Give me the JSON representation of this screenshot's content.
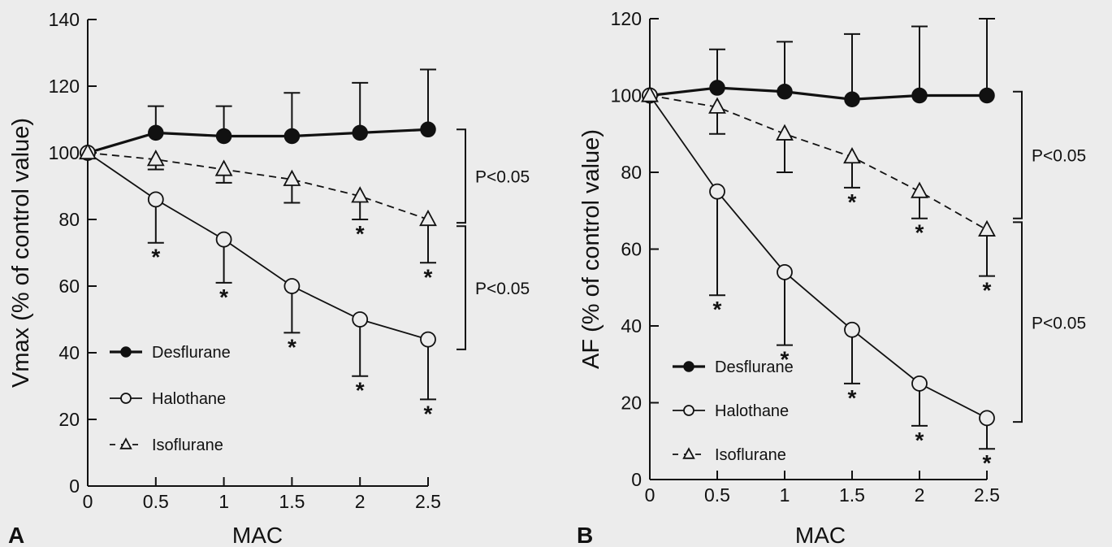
{
  "chart_data": [
    {
      "type": "line",
      "panel_label": "A",
      "xlabel": "MAC",
      "ylabel": "Vmax (% of control value)",
      "x": [
        0,
        0.5,
        1,
        1.5,
        2,
        2.5
      ],
      "x_ticks": [
        "0",
        "0.5",
        "1",
        "1.5",
        "2",
        "2.5"
      ],
      "y_ticks": [
        "0",
        "20",
        "40",
        "60",
        "80",
        "100",
        "120",
        "140"
      ],
      "xlim": [
        0,
        2.5
      ],
      "ylim": [
        0,
        140
      ],
      "legend_placement": "lower-left",
      "series": [
        {
          "name": "Desflurane",
          "marker": "filled-circle",
          "line": "thick-solid",
          "values": [
            100,
            106,
            105,
            105,
            106,
            107
          ],
          "error_upper": [
            100,
            114,
            114,
            118,
            121,
            125
          ],
          "sig": [
            false,
            false,
            false,
            false,
            false,
            false
          ]
        },
        {
          "name": "Halothane",
          "marker": "open-circle",
          "line": "thin-solid",
          "values": [
            100,
            86,
            74,
            60,
            50,
            44
          ],
          "error_lower": [
            100,
            73,
            61,
            46,
            33,
            26
          ],
          "sig": [
            false,
            true,
            true,
            true,
            true,
            true
          ]
        },
        {
          "name": "Isoflurane",
          "marker": "open-triangle",
          "line": "dashed",
          "values": [
            100,
            98,
            95,
            92,
            87,
            80
          ],
          "error_lower": [
            100,
            95,
            91,
            85,
            80,
            67
          ],
          "sig": [
            false,
            false,
            false,
            false,
            true,
            true
          ]
        }
      ],
      "brackets": [
        {
          "label": "P<0.05",
          "y_from": 79,
          "y_to": 107
        },
        {
          "label": "P<0.05",
          "y_from": 41,
          "y_to": 78
        }
      ]
    },
    {
      "type": "line",
      "panel_label": "B",
      "xlabel": "MAC",
      "ylabel": "AF (% of control value)",
      "x": [
        0,
        0.5,
        1,
        1.5,
        2,
        2.5
      ],
      "x_ticks": [
        "0",
        "0.5",
        "1",
        "1.5",
        "2",
        "2.5"
      ],
      "y_ticks": [
        "0",
        "20",
        "40",
        "60",
        "80",
        "100",
        "120"
      ],
      "xlim": [
        0,
        2.5
      ],
      "ylim": [
        0,
        120
      ],
      "legend_placement": "lower-left",
      "series": [
        {
          "name": "Desflurane",
          "marker": "filled-circle",
          "line": "thick-solid",
          "values": [
            100,
            102,
            101,
            99,
            100,
            100
          ],
          "error_upper": [
            100,
            112,
            114,
            116,
            118,
            120
          ],
          "sig": [
            false,
            false,
            false,
            false,
            false,
            false
          ]
        },
        {
          "name": "Halothane",
          "marker": "open-circle",
          "line": "thin-solid",
          "values": [
            100,
            75,
            54,
            39,
            25,
            16
          ],
          "error_lower": [
            100,
            48,
            35,
            25,
            14,
            8
          ],
          "sig": [
            false,
            true,
            true,
            true,
            true,
            true
          ]
        },
        {
          "name": "Isoflurane",
          "marker": "open-triangle",
          "line": "dashed",
          "values": [
            100,
            97,
            90,
            84,
            75,
            65
          ],
          "error_lower": [
            100,
            90,
            80,
            76,
            68,
            53
          ],
          "sig": [
            false,
            false,
            false,
            true,
            true,
            true
          ]
        }
      ],
      "brackets": [
        {
          "label": "P<0.05",
          "y_from": 68,
          "y_to": 101
        },
        {
          "label": "P<0.05",
          "y_from": 15,
          "y_to": 67
        }
      ]
    }
  ]
}
